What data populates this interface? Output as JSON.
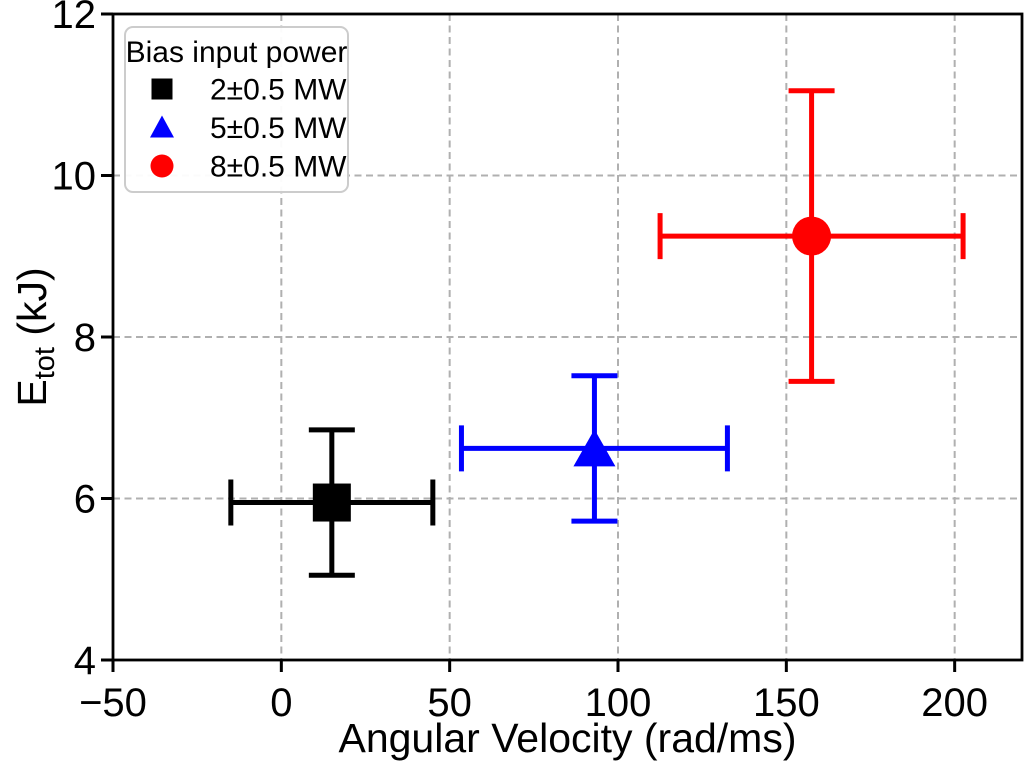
{
  "chart_data": {
    "type": "scatter",
    "title": "",
    "xlabel": "Angular Velocity (rad/ms)",
    "ylabel": "E_tot (kJ)",
    "ylabel_parts": {
      "pre": "E",
      "sub": "tot",
      "post": " (kJ)"
    },
    "xlim": [
      -50,
      220
    ],
    "ylim": [
      4,
      12
    ],
    "xticks": [
      -50,
      0,
      50,
      100,
      150,
      200
    ],
    "yticks": [
      4,
      6,
      8,
      10,
      12
    ],
    "grid": true,
    "grid_style": "dashed",
    "legend": {
      "title": "Bias input power",
      "position": "upper-left"
    },
    "series": [
      {
        "name": "2±0.5 MW",
        "marker": "square",
        "color": "#000000",
        "points": [
          {
            "x": 15,
            "y": 5.95,
            "xerr": 30,
            "yerr": 0.9
          }
        ]
      },
      {
        "name": "5±0.5 MW",
        "marker": "triangle",
        "color": "#0000ff",
        "points": [
          {
            "x": 93,
            "y": 6.62,
            "xerr": 39.5,
            "yerr": 0.9
          }
        ]
      },
      {
        "name": "8±0.5 MW",
        "marker": "circle",
        "color": "#ff0000",
        "points": [
          {
            "x": 157.5,
            "y": 9.25,
            "xerr": 45,
            "yerr": 1.8
          }
        ]
      }
    ]
  },
  "colors": {
    "background": "#ffffff",
    "spine": "#000000",
    "grid": "#b0b0b0",
    "tick_label": "#000000",
    "legend_border": "#cccccc",
    "legend_background": "#ffffff"
  }
}
